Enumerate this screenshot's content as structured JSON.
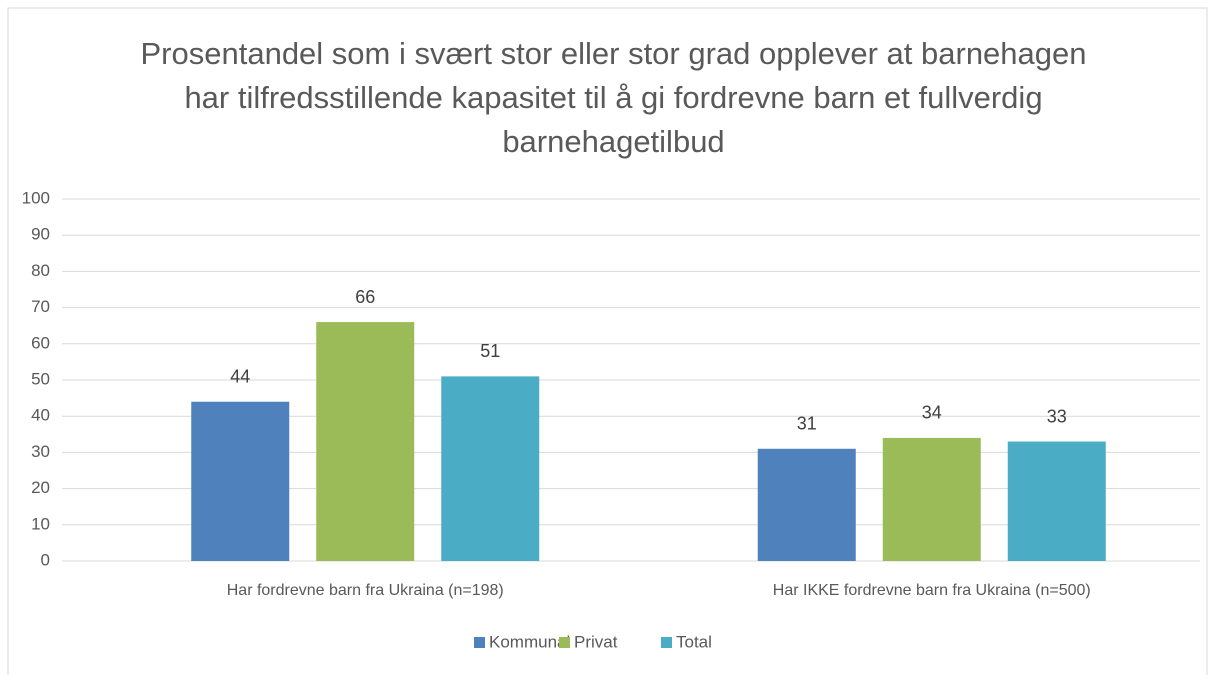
{
  "chart_data": {
    "type": "bar",
    "title": "Prosentandel som i svært stor eller stor grad opplever at barnehagen har tilfredsstillende kapasitet til å gi fordrevne barn et fullverdig barnehagetilbud",
    "categories": [
      "Har fordrevne barn fra Ukraina (n=198)",
      "Har IKKE fordrevne barn fra Ukraina (n=500)"
    ],
    "series": [
      {
        "name": "Kommunal",
        "color": "#4f81bd",
        "values": [
          44,
          31
        ]
      },
      {
        "name": "Privat",
        "color": "#9bbb59",
        "values": [
          66,
          34
        ]
      },
      {
        "name": "Total",
        "color": "#4bacc6",
        "values": [
          51,
          33
        ]
      }
    ],
    "ylim": [
      0,
      100
    ],
    "yticks": [
      0,
      10,
      20,
      30,
      40,
      50,
      60,
      70,
      80,
      90,
      100
    ],
    "grid": true,
    "legend": "bottom"
  }
}
